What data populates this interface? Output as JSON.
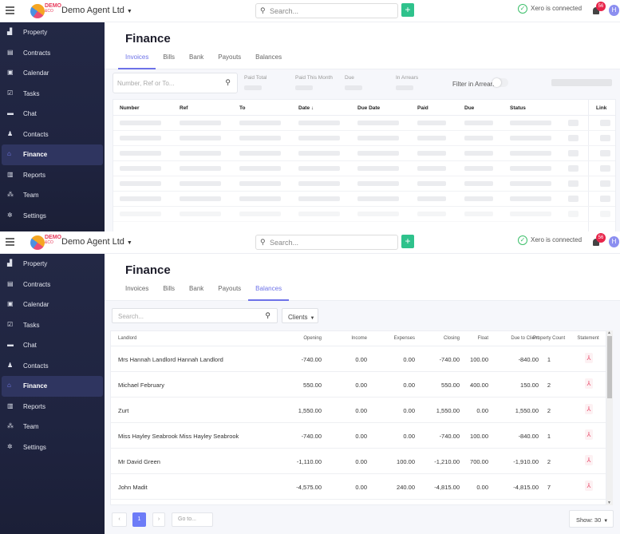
{
  "topbar": {
    "logo_text": "DEMO",
    "logo_sub": "&CO",
    "company": "Demo Agent Ltd",
    "search_placeholder": "Search...",
    "add_label": "+",
    "xero_status": "Xero is connected",
    "notification_count": "56",
    "avatar_initial": "H"
  },
  "sidebar": {
    "items": [
      {
        "label": "Property",
        "icon": "building-icon",
        "glyph": "▟"
      },
      {
        "label": "Contracts",
        "icon": "contract-icon",
        "glyph": "▤"
      },
      {
        "label": "Calendar",
        "icon": "calendar-icon",
        "glyph": "▣"
      },
      {
        "label": "Tasks",
        "icon": "task-check-icon",
        "glyph": "☑"
      },
      {
        "label": "Chat",
        "icon": "chat-icon",
        "glyph": "▬"
      },
      {
        "label": "Contacts",
        "icon": "contacts-icon",
        "glyph": "♟"
      },
      {
        "label": "Finance",
        "icon": "bank-icon",
        "glyph": "⌂"
      },
      {
        "label": "Reports",
        "icon": "report-icon",
        "glyph": "▥"
      },
      {
        "label": "Team",
        "icon": "team-icon",
        "glyph": "⁂"
      },
      {
        "label": "Settings",
        "icon": "gear-icon",
        "glyph": "✲"
      }
    ],
    "active": "Finance"
  },
  "page": {
    "title": "Finance",
    "tabs": [
      "Invoices",
      "Bills",
      "Bank",
      "Payouts",
      "Balances"
    ]
  },
  "invoices_view": {
    "active_tab": "Invoices",
    "search_placeholder": "Number, Ref or To...",
    "stats": [
      "Paid Total",
      "Paid This Month",
      "Due",
      "In Arrears"
    ],
    "filter_label": "Filter in Arrears",
    "filter_on": false,
    "columns": [
      "Number",
      "Ref",
      "To",
      "Date ↓",
      "Due Date",
      "Paid",
      "Due",
      "Status",
      "Link"
    ],
    "loading": true,
    "skeleton_rows": 7
  },
  "balances_view": {
    "active_tab": "Balances",
    "search_placeholder": "Search...",
    "filter_dropdown": "Clients",
    "columns": [
      "Landlord",
      "Opening",
      "Income",
      "Expenses",
      "Closing",
      "Float",
      "Due to Client",
      "Property Count",
      "Statement"
    ],
    "rows": [
      {
        "landlord": "Mrs Hannah Landlord Hannah Landlord",
        "opening": "-740.00",
        "income": "0.00",
        "expenses": "0.00",
        "closing": "-740.00",
        "float": "100.00",
        "due_to_client": "-840.00",
        "property_count": "1"
      },
      {
        "landlord": "Michael February",
        "opening": "550.00",
        "income": "0.00",
        "expenses": "0.00",
        "closing": "550.00",
        "float": "400.00",
        "due_to_client": "150.00",
        "property_count": "2"
      },
      {
        "landlord": "Zurt",
        "opening": "1,550.00",
        "income": "0.00",
        "expenses": "0.00",
        "closing": "1,550.00",
        "float": "0.00",
        "due_to_client": "1,550.00",
        "property_count": "2"
      },
      {
        "landlord": "Miss Hayley Seabrook Miss Hayley Seabrook",
        "opening": "-740.00",
        "income": "0.00",
        "expenses": "0.00",
        "closing": "-740.00",
        "float": "100.00",
        "due_to_client": "-840.00",
        "property_count": "1"
      },
      {
        "landlord": "Mr David Green",
        "opening": "-1,110.00",
        "income": "0.00",
        "expenses": "100.00",
        "closing": "-1,210.00",
        "float": "700.00",
        "due_to_client": "-1,910.00",
        "property_count": "2"
      },
      {
        "landlord": "John Madit",
        "opening": "-4,575.00",
        "income": "0.00",
        "expenses": "240.00",
        "closing": "-4,815.00",
        "float": "0.00",
        "due_to_client": "-4,815.00",
        "property_count": "7"
      }
    ],
    "pagination": {
      "prev": "‹",
      "current_page": "1",
      "next": "›",
      "goto_placeholder": "Go to...",
      "show_label": "Show: 30"
    }
  },
  "colors": {
    "accent": "#6d72e8",
    "sidebar_bg": "#232845",
    "sidebar_active": "#2f3560",
    "add_button": "#2fc28c",
    "xero_green": "#3cbf6a",
    "notification_badge": "#e8254a",
    "pdf_red": "#e84a6a"
  }
}
